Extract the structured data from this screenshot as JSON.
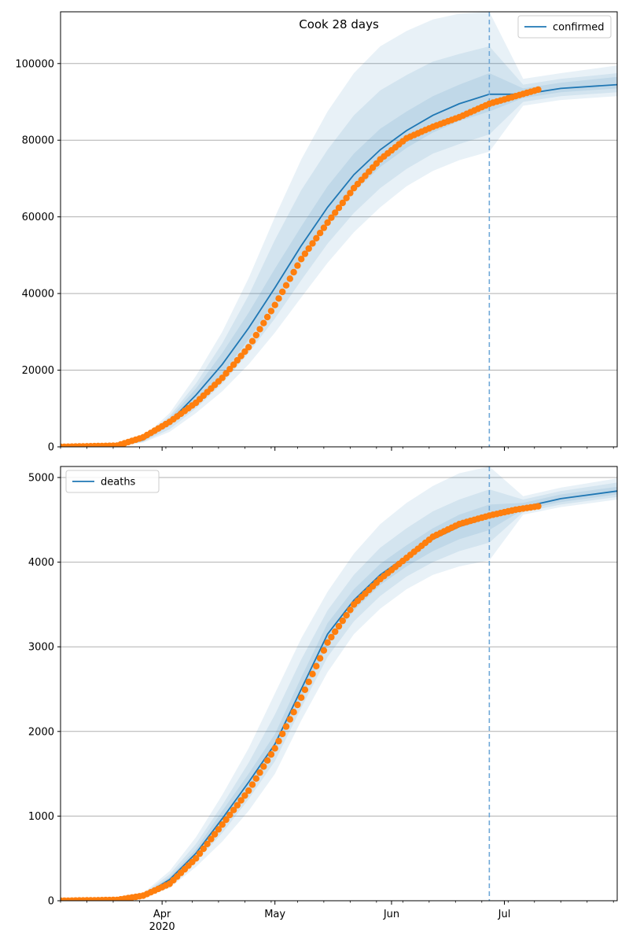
{
  "chart_data": [
    {
      "type": "line",
      "title": "Cook 28 days",
      "xlabel": "",
      "ylabel": "",
      "ylim": [
        0,
        113500
      ],
      "yticks": [
        0,
        20000,
        40000,
        60000,
        80000,
        100000
      ],
      "grid": "horizontal",
      "legend": {
        "position": "top-right",
        "entries": [
          "confirmed"
        ]
      },
      "x_range": [
        "2020-03-05",
        "2020-07-31"
      ],
      "x_ticks": [
        {
          "date": "2020-04-01",
          "label": "Apr",
          "sublabel": "2020"
        },
        {
          "date": "2020-05-01",
          "label": "May",
          "sublabel": ""
        },
        {
          "date": "2020-06-01",
          "label": "Jun",
          "sublabel": ""
        },
        {
          "date": "2020-07-01",
          "label": "Jul",
          "sublabel": ""
        }
      ],
      "forecast_start": "2020-06-27",
      "colors": {
        "line": "#1f77b4",
        "band": "#1f77b4",
        "observed": "#ff7f0e",
        "vline": "#6fa8d8"
      },
      "series": [
        {
          "name": "confirmed",
          "kind": "model",
          "x": [
            "2020-03-20",
            "2020-03-27",
            "2020-04-03",
            "2020-04-10",
            "2020-04-17",
            "2020-04-24",
            "2020-05-01",
            "2020-05-08",
            "2020-05-15",
            "2020-05-22",
            "2020-05-29",
            "2020-06-05",
            "2020-06-12",
            "2020-06-19",
            "2020-06-27",
            "2020-07-06",
            "2020-07-16",
            "2020-07-31"
          ],
          "y": [
            200,
            1800,
            6500,
            13500,
            21500,
            31000,
            41500,
            52500,
            62500,
            71000,
            77500,
            82500,
            86500,
            89500,
            92000,
            92000,
            93500,
            94500
          ],
          "bands": [
            {
              "lower": [
                100,
                1100,
                3900,
                8800,
                14500,
                21500,
                29800,
                39000,
                48000,
                56000,
                62500,
                68000,
                72000,
                74800,
                77000,
                89000,
                90500,
                91500
              ],
              "upper": [
                300,
                2500,
                8800,
                18500,
                30000,
                44000,
                60000,
                75000,
                87500,
                97500,
                104500,
                108500,
                111500,
                113000,
                113500,
                96000,
                97500,
                99500
              ]
            },
            {
              "lower": [
                130,
                1300,
                4600,
                10000,
                16500,
                24500,
                33500,
                43500,
                53000,
                61000,
                67500,
                72500,
                76500,
                79000,
                81500,
                90000,
                91500,
                92500
              ],
              "upper": [
                270,
                2300,
                8000,
                16500,
                27000,
                39500,
                54000,
                67000,
                77500,
                86500,
                93000,
                97000,
                100500,
                102500,
                104500,
                94500,
                96000,
                97500
              ]
            },
            {
              "lower": [
                160,
                1500,
                5500,
                11800,
                19000,
                28000,
                38000,
                48500,
                58500,
                66500,
                73000,
                78000,
                82000,
                85000,
                87500,
                91000,
                92500,
                93500
              ],
              "upper": [
                240,
                2100,
                7400,
                15200,
                24500,
                35000,
                46500,
                57500,
                68000,
                76500,
                83000,
                87500,
                91500,
                94500,
                97500,
                93500,
                95000,
                96500
              ]
            }
          ]
        },
        {
          "name": "",
          "kind": "observed",
          "x": [
            "2020-03-05",
            "2020-03-20",
            "2020-03-27",
            "2020-04-03",
            "2020-04-10",
            "2020-04-17",
            "2020-04-24",
            "2020-05-01",
            "2020-05-08",
            "2020-05-15",
            "2020-05-22",
            "2020-05-29",
            "2020-06-05",
            "2020-06-12",
            "2020-06-19",
            "2020-06-27",
            "2020-07-04",
            "2020-07-10"
          ],
          "y": [
            0,
            300,
            2500,
            6500,
            11500,
            18000,
            26000,
            37000,
            49000,
            58500,
            67500,
            75000,
            80500,
            83500,
            86000,
            89500,
            91500,
            93200
          ]
        }
      ]
    },
    {
      "type": "line",
      "title": "",
      "xlabel": "",
      "ylabel": "",
      "ylim": [
        0,
        5130
      ],
      "yticks": [
        0,
        1000,
        2000,
        3000,
        4000,
        5000
      ],
      "grid": "horizontal",
      "legend": {
        "position": "top-left",
        "entries": [
          "deaths"
        ]
      },
      "x_range": [
        "2020-03-05",
        "2020-07-31"
      ],
      "forecast_start": "2020-06-27",
      "series": [
        {
          "name": "deaths",
          "kind": "model",
          "x": [
            "2020-03-20",
            "2020-03-27",
            "2020-04-03",
            "2020-04-10",
            "2020-04-17",
            "2020-04-24",
            "2020-05-01",
            "2020-05-08",
            "2020-05-15",
            "2020-05-22",
            "2020-05-29",
            "2020-06-05",
            "2020-06-12",
            "2020-06-19",
            "2020-06-27",
            "2020-07-06",
            "2020-07-16",
            "2020-07-31"
          ],
          "y": [
            10,
            60,
            250,
            560,
            970,
            1400,
            1850,
            2500,
            3150,
            3550,
            3850,
            4070,
            4270,
            4420,
            4530,
            4650,
            4750,
            4840
          ],
          "bands": [
            {
              "lower": [
                5,
                30,
                150,
                400,
                700,
                1060,
                1500,
                2130,
                2700,
                3150,
                3450,
                3680,
                3850,
                3950,
                4020,
                4560,
                4650,
                4740
              ],
              "upper": [
                15,
                90,
                350,
                750,
                1250,
                1800,
                2450,
                3100,
                3650,
                4100,
                4450,
                4700,
                4900,
                5050,
                5130,
                4780,
                4880,
                4990
              ]
            },
            {
              "lower": [
                7,
                40,
                190,
                460,
                800,
                1200,
                1650,
                2280,
                2880,
                3300,
                3600,
                3830,
                4000,
                4130,
                4230,
                4590,
                4680,
                4770
              ],
              "upper": [
                13,
                80,
                310,
                670,
                1130,
                1630,
                2200,
                2850,
                3430,
                3850,
                4170,
                4400,
                4600,
                4740,
                4860,
                4740,
                4840,
                4940
              ]
            },
            {
              "lower": [
                8,
                50,
                220,
                510,
                880,
                1310,
                1760,
                2400,
                3020,
                3430,
                3730,
                3950,
                4130,
                4270,
                4380,
                4620,
                4710,
                4800
              ],
              "upper": [
                12,
                70,
                280,
                610,
                1060,
                1500,
                1970,
                2640,
                3280,
                3680,
                3980,
                4200,
                4400,
                4560,
                4680,
                4700,
                4800,
                4890
              ]
            }
          ]
        },
        {
          "name": "",
          "kind": "observed",
          "x": [
            "2020-03-05",
            "2020-03-20",
            "2020-03-27",
            "2020-04-03",
            "2020-04-10",
            "2020-04-17",
            "2020-04-24",
            "2020-05-01",
            "2020-05-08",
            "2020-05-15",
            "2020-05-22",
            "2020-05-29",
            "2020-06-05",
            "2020-06-12",
            "2020-06-19",
            "2020-06-27",
            "2020-07-04",
            "2020-07-10"
          ],
          "y": [
            0,
            10,
            60,
            200,
            500,
            900,
            1300,
            1800,
            2400,
            3050,
            3500,
            3800,
            4050,
            4300,
            4450,
            4550,
            4620,
            4660
          ]
        }
      ]
    }
  ]
}
